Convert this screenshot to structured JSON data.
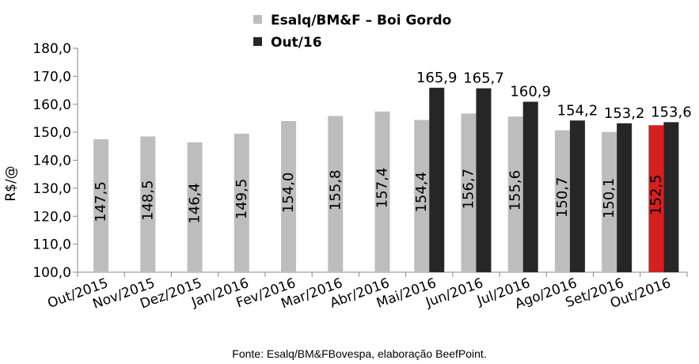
{
  "chart_data": {
    "type": "bar",
    "ylabel": "R$/@",
    "ylim": [
      100,
      180
    ],
    "y_ticks": [
      "100,0",
      "110,0",
      "120,0",
      "130,0",
      "140,0",
      "150,0",
      "160,0",
      "170,0",
      "180,0"
    ],
    "y_tick_values": [
      100,
      110,
      120,
      130,
      140,
      150,
      160,
      170,
      180
    ],
    "categories": [
      "Out/2015",
      "Nov/2015",
      "Dez/2015",
      "Jan/2016",
      "Fev/2016",
      "Mar/2016",
      "Abr/2016",
      "Mai/2016",
      "Jun/2016",
      "Jul/2016",
      "Ago/2016",
      "Set/2016",
      "Out/2016"
    ],
    "legend_position": "top",
    "grid": false,
    "series": [
      {
        "name": "Esalq/BM&F – Boi Gordo",
        "color": "#bdbdbd",
        "values": [
          147.5,
          148.5,
          146.4,
          149.5,
          154.0,
          155.8,
          157.4,
          154.4,
          156.7,
          155.6,
          150.7,
          150.1,
          152.5
        ],
        "labels": [
          "147,5",
          "148,5",
          "146,4",
          "149,5",
          "154,0",
          "155,8",
          "157,4",
          "154,4",
          "156,7",
          "155,6",
          "150,7",
          "150,1",
          "152,5"
        ],
        "highlight_index": 12,
        "highlight_color": "#d42020"
      },
      {
        "name": "Out/16",
        "color": "#262626",
        "values": [
          null,
          null,
          null,
          null,
          null,
          null,
          null,
          165.9,
          165.7,
          160.9,
          154.2,
          153.2,
          153.6
        ],
        "labels": [
          "",
          "",
          "",
          "",
          "",
          "",
          "",
          "165,9",
          "165,7",
          "160,9",
          "154,2",
          "153,2",
          "153,6"
        ]
      }
    ]
  },
  "source": "Fonte: Esalq/BM&FBovespa, elaboração BeefPoint."
}
